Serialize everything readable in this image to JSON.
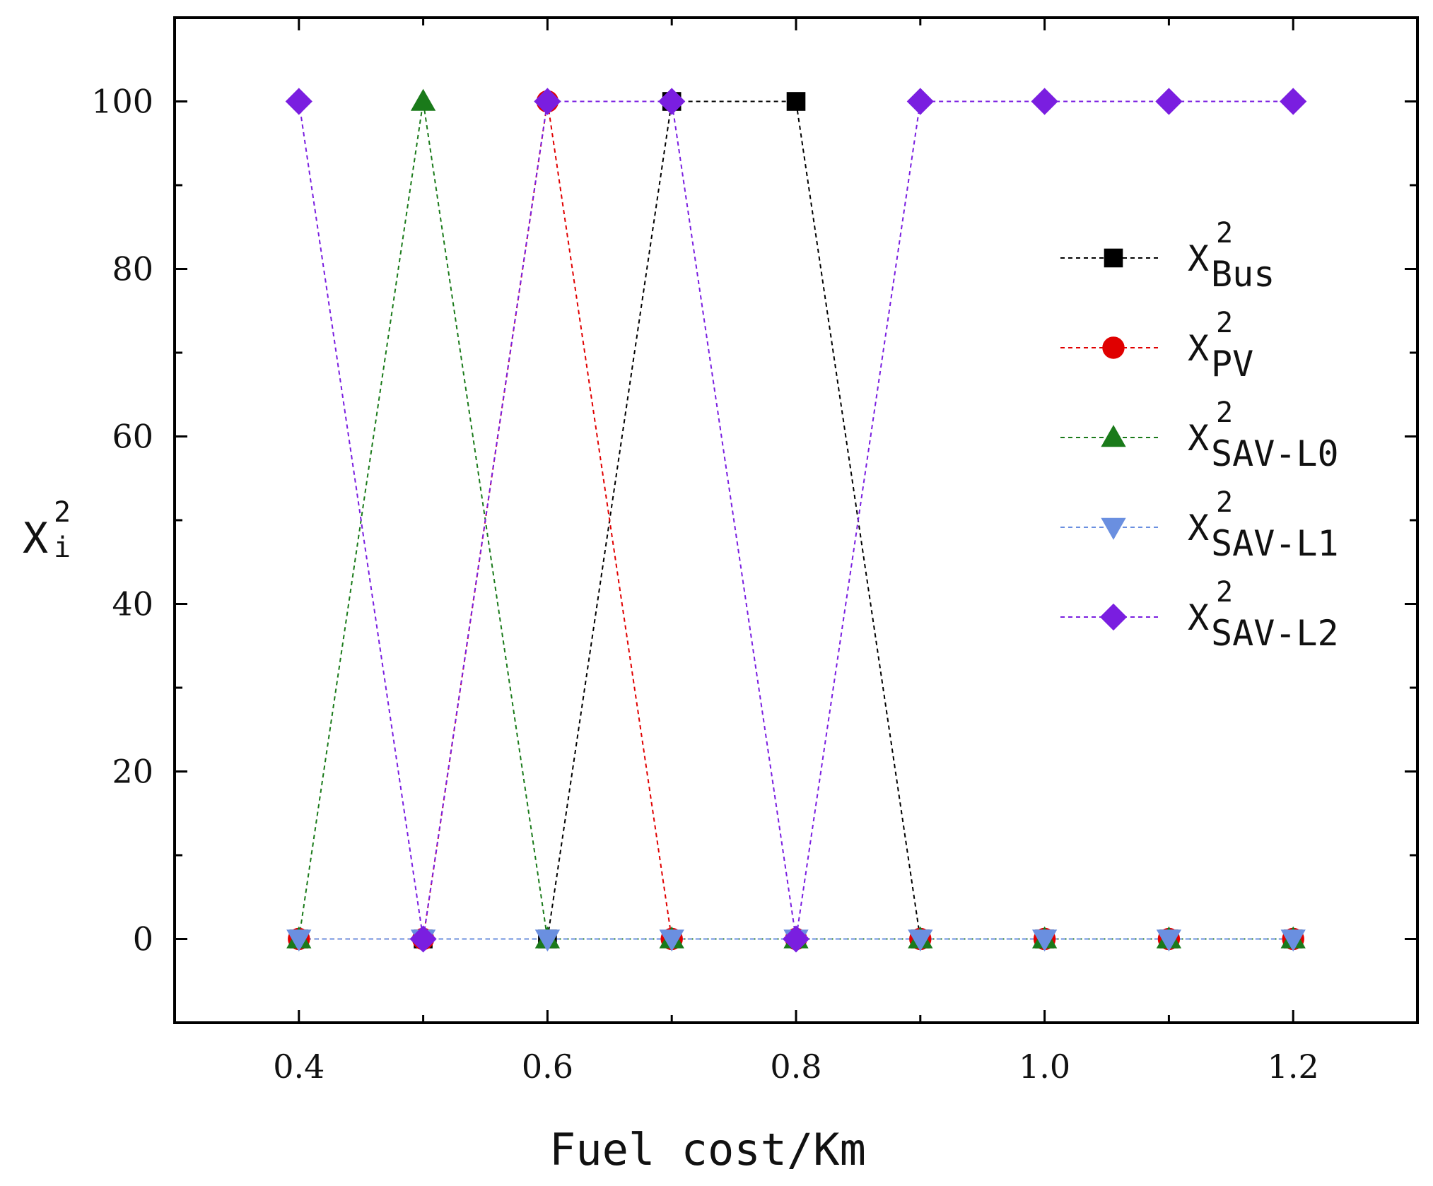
{
  "chart_data": {
    "type": "line",
    "title": "",
    "xlabel": "Fuel cost/Km",
    "ylabel": {
      "base": "X",
      "sub": "i",
      "sup": "2"
    },
    "xlim": [
      0.3,
      1.3
    ],
    "ylim": [
      -10,
      110
    ],
    "xticks": [
      0.4,
      0.6,
      0.8,
      1.0,
      1.2
    ],
    "xtick_labels": [
      "0.4",
      "0.6",
      "0.8",
      "1.0",
      "1.2"
    ],
    "yticks": [
      0,
      20,
      40,
      60,
      80,
      100
    ],
    "ytick_labels": [
      "0",
      "20",
      "40",
      "60",
      "80",
      "100"
    ],
    "legend_position": "right",
    "x": [
      0.4,
      0.5,
      0.6,
      0.7,
      0.8,
      0.9,
      1.0,
      1.1,
      1.2
    ],
    "series": [
      {
        "name": "Bus",
        "label_base": "X",
        "label_sub": "Bus",
        "label_sup": "2",
        "color": "#000000",
        "marker": "square",
        "values": [
          0,
          0,
          0,
          100,
          100,
          0,
          0,
          0,
          0
        ]
      },
      {
        "name": "PV",
        "label_base": "X",
        "label_sub": "PV",
        "label_sup": "2",
        "color": "#e00000",
        "marker": "circle",
        "values": [
          0,
          0,
          100,
          0,
          0,
          0,
          0,
          0,
          0
        ]
      },
      {
        "name": "SAV-L0",
        "label_base": "X",
        "label_sub": "SAV-L0",
        "label_sup": "2",
        "color": "#1a7a1a",
        "marker": "triangle-up",
        "values": [
          0,
          100,
          0,
          0,
          0,
          0,
          0,
          0,
          0
        ]
      },
      {
        "name": "SAV-L1",
        "label_base": "X",
        "label_sub": "SAV-L1",
        "label_sup": "2",
        "color": "#6a8fe0",
        "marker": "triangle-down",
        "values": [
          0,
          0,
          0,
          0,
          0,
          0,
          0,
          0,
          0
        ]
      },
      {
        "name": "SAV-L2",
        "label_base": "X",
        "label_sub": "SAV-L2",
        "label_sup": "2",
        "color": "#7a1ee0",
        "marker": "diamond",
        "values": [
          100,
          0,
          100,
          100,
          0,
          100,
          100,
          100,
          100
        ]
      }
    ]
  }
}
